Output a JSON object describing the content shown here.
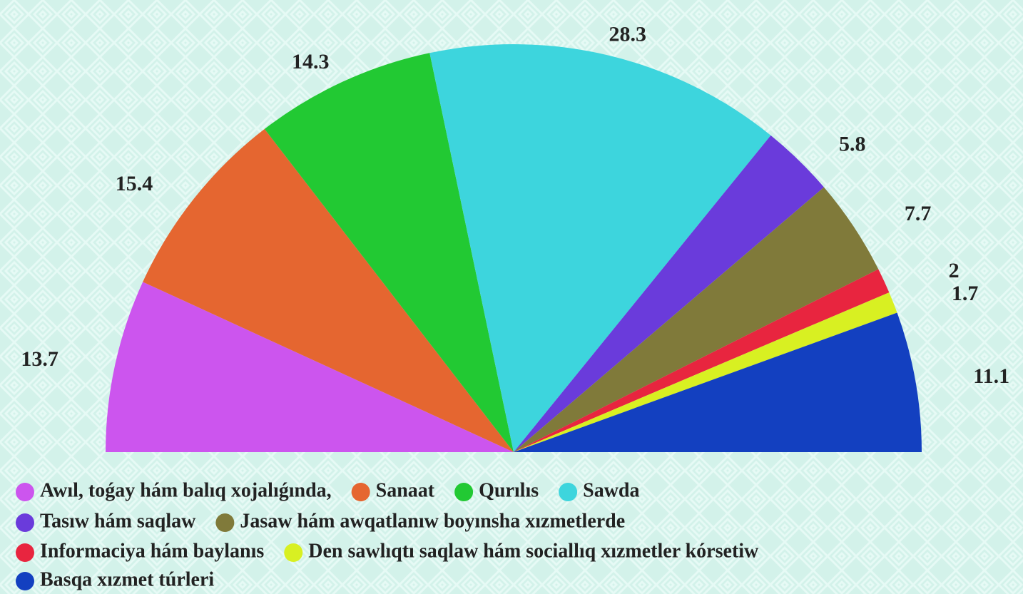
{
  "chart_data": {
    "type": "semi-pie",
    "categories": [
      "Awıl, toǵay hám balıq xojalıǵında,",
      "Sanaat",
      "Qurılıs",
      "Sawda",
      "Tasıw hám saqlaw",
      "Jasaw hám awqatlanıw boyınsha xızmetlerde",
      "Informaciya hám baylanıs",
      "Den sawlıqtı saqlaw hám sociallıq xızmetler kórsetiw",
      "Basqa xızmet túrleri"
    ],
    "values": [
      13.7,
      15.4,
      14.3,
      28.3,
      5.8,
      7.7,
      2,
      1.7,
      11.1
    ],
    "colors": [
      "#cc55ee",
      "#e56630",
      "#22c933",
      "#3dd5dd",
      "#6a3bdb",
      "#807a3a",
      "#e8253f",
      "#d8f022",
      "#1340c0"
    ],
    "legend": "bottom"
  }
}
